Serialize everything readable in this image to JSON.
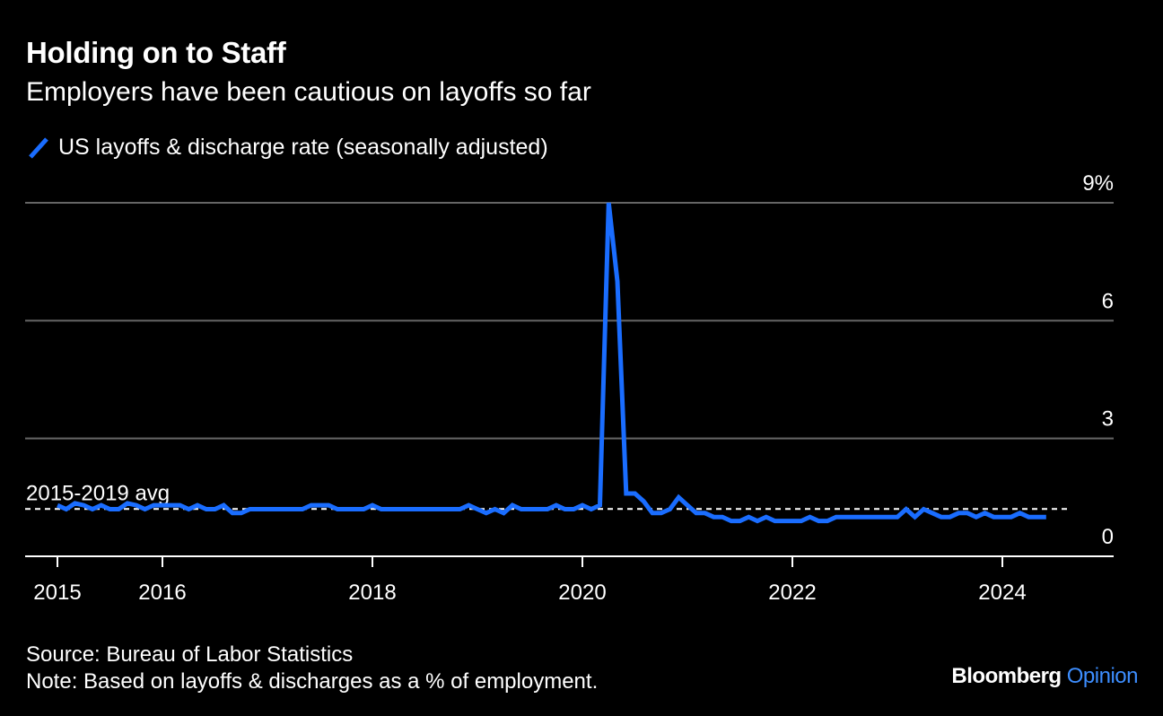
{
  "header": {
    "title": "Holding on to Staff",
    "subtitle": "Employers have been cautious on layoffs so far"
  },
  "legend": {
    "label": "US layoffs & discharge rate (seasonally adjusted)",
    "icon": "diagonal-line-icon"
  },
  "colors": {
    "background": "#000000",
    "series": "#1a6dff",
    "grid": "#666666",
    "text": "#ffffff",
    "brand_accent": "#3d8eff"
  },
  "footer": {
    "source": "Source: Bureau of Labor Statistics",
    "note": "Note: Based on layoffs & discharges as a % of employment."
  },
  "brand": {
    "name": "Bloomberg",
    "section": "Opinion"
  },
  "chart_data": {
    "type": "line",
    "title": "Holding on to Staff",
    "subtitle": "Employers have been cautious on layoffs so far",
    "xlabel": "",
    "ylabel": "",
    "xlim": [
      "2015-01",
      "2024-12"
    ],
    "ylim": [
      0,
      9
    ],
    "grid": true,
    "y_ticks": [
      {
        "value": 0,
        "label": "0"
      },
      {
        "value": 3,
        "label": "3"
      },
      {
        "value": 6,
        "label": "6"
      },
      {
        "value": 9,
        "label": "9%"
      }
    ],
    "x_ticks": [
      {
        "value": "2015-01",
        "label": "2015"
      },
      {
        "value": "2016-01",
        "label": "2016"
      },
      {
        "value": "2018-01",
        "label": "2018"
      },
      {
        "value": "2020-01",
        "label": "2020"
      },
      {
        "value": "2022-01",
        "label": "2022"
      },
      {
        "value": "2024-01",
        "label": "2024"
      }
    ],
    "reference_line": {
      "label": "2015-2019 avg",
      "value": 1.25,
      "style": "dashed"
    },
    "series": [
      {
        "name": "US layoffs & discharge rate (seasonally adjusted)",
        "color": "#1a6dff",
        "points": [
          [
            "2015-01",
            1.3
          ],
          [
            "2015-02",
            1.2
          ],
          [
            "2015-03",
            1.35
          ],
          [
            "2015-04",
            1.3
          ],
          [
            "2015-05",
            1.2
          ],
          [
            "2015-06",
            1.3
          ],
          [
            "2015-07",
            1.2
          ],
          [
            "2015-08",
            1.2
          ],
          [
            "2015-09",
            1.35
          ],
          [
            "2015-10",
            1.3
          ],
          [
            "2015-11",
            1.2
          ],
          [
            "2015-12",
            1.3
          ],
          [
            "2016-01",
            1.3
          ],
          [
            "2016-02",
            1.3
          ],
          [
            "2016-03",
            1.3
          ],
          [
            "2016-04",
            1.2
          ],
          [
            "2016-05",
            1.3
          ],
          [
            "2016-06",
            1.2
          ],
          [
            "2016-07",
            1.2
          ],
          [
            "2016-08",
            1.3
          ],
          [
            "2016-09",
            1.1
          ],
          [
            "2016-10",
            1.1
          ],
          [
            "2016-11",
            1.2
          ],
          [
            "2016-12",
            1.2
          ],
          [
            "2017-01",
            1.2
          ],
          [
            "2017-02",
            1.2
          ],
          [
            "2017-03",
            1.2
          ],
          [
            "2017-04",
            1.2
          ],
          [
            "2017-05",
            1.2
          ],
          [
            "2017-06",
            1.3
          ],
          [
            "2017-07",
            1.3
          ],
          [
            "2017-08",
            1.3
          ],
          [
            "2017-09",
            1.2
          ],
          [
            "2017-10",
            1.2
          ],
          [
            "2017-11",
            1.2
          ],
          [
            "2017-12",
            1.2
          ],
          [
            "2018-01",
            1.3
          ],
          [
            "2018-02",
            1.2
          ],
          [
            "2018-03",
            1.2
          ],
          [
            "2018-04",
            1.2
          ],
          [
            "2018-05",
            1.2
          ],
          [
            "2018-06",
            1.2
          ],
          [
            "2018-07",
            1.2
          ],
          [
            "2018-08",
            1.2
          ],
          [
            "2018-09",
            1.2
          ],
          [
            "2018-10",
            1.2
          ],
          [
            "2018-11",
            1.2
          ],
          [
            "2018-12",
            1.3
          ],
          [
            "2019-01",
            1.2
          ],
          [
            "2019-02",
            1.1
          ],
          [
            "2019-03",
            1.2
          ],
          [
            "2019-04",
            1.1
          ],
          [
            "2019-05",
            1.3
          ],
          [
            "2019-06",
            1.2
          ],
          [
            "2019-07",
            1.2
          ],
          [
            "2019-08",
            1.2
          ],
          [
            "2019-09",
            1.2
          ],
          [
            "2019-10",
            1.3
          ],
          [
            "2019-11",
            1.2
          ],
          [
            "2019-12",
            1.2
          ],
          [
            "2020-01",
            1.3
          ],
          [
            "2020-02",
            1.2
          ],
          [
            "2020-03",
            1.3
          ],
          [
            "2020-04",
            9.0
          ],
          [
            "2020-05",
            7.0
          ],
          [
            "2020-06",
            1.6
          ],
          [
            "2020-07",
            1.6
          ],
          [
            "2020-08",
            1.4
          ],
          [
            "2020-09",
            1.1
          ],
          [
            "2020-10",
            1.1
          ],
          [
            "2020-11",
            1.2
          ],
          [
            "2020-12",
            1.5
          ],
          [
            "2021-01",
            1.3
          ],
          [
            "2021-02",
            1.1
          ],
          [
            "2021-03",
            1.1
          ],
          [
            "2021-04",
            1.0
          ],
          [
            "2021-05",
            1.0
          ],
          [
            "2021-06",
            0.9
          ],
          [
            "2021-07",
            0.9
          ],
          [
            "2021-08",
            1.0
          ],
          [
            "2021-09",
            0.9
          ],
          [
            "2021-10",
            1.0
          ],
          [
            "2021-11",
            0.9
          ],
          [
            "2021-12",
            0.9
          ],
          [
            "2022-01",
            0.9
          ],
          [
            "2022-02",
            0.9
          ],
          [
            "2022-03",
            1.0
          ],
          [
            "2022-04",
            0.9
          ],
          [
            "2022-05",
            0.9
          ],
          [
            "2022-06",
            1.0
          ],
          [
            "2022-07",
            1.0
          ],
          [
            "2022-08",
            1.0
          ],
          [
            "2022-09",
            1.0
          ],
          [
            "2022-10",
            1.0
          ],
          [
            "2022-11",
            1.0
          ],
          [
            "2022-12",
            1.0
          ],
          [
            "2023-01",
            1.0
          ],
          [
            "2023-02",
            1.2
          ],
          [
            "2023-03",
            1.0
          ],
          [
            "2023-04",
            1.2
          ],
          [
            "2023-05",
            1.1
          ],
          [
            "2023-06",
            1.0
          ],
          [
            "2023-07",
            1.0
          ],
          [
            "2023-08",
            1.1
          ],
          [
            "2023-09",
            1.1
          ],
          [
            "2023-10",
            1.0
          ],
          [
            "2023-11",
            1.1
          ],
          [
            "2023-12",
            1.0
          ],
          [
            "2024-01",
            1.0
          ],
          [
            "2024-02",
            1.0
          ],
          [
            "2024-03",
            1.1
          ],
          [
            "2024-04",
            1.0
          ],
          [
            "2024-05",
            1.0
          ],
          [
            "2024-06",
            1.0
          ]
        ]
      }
    ]
  }
}
